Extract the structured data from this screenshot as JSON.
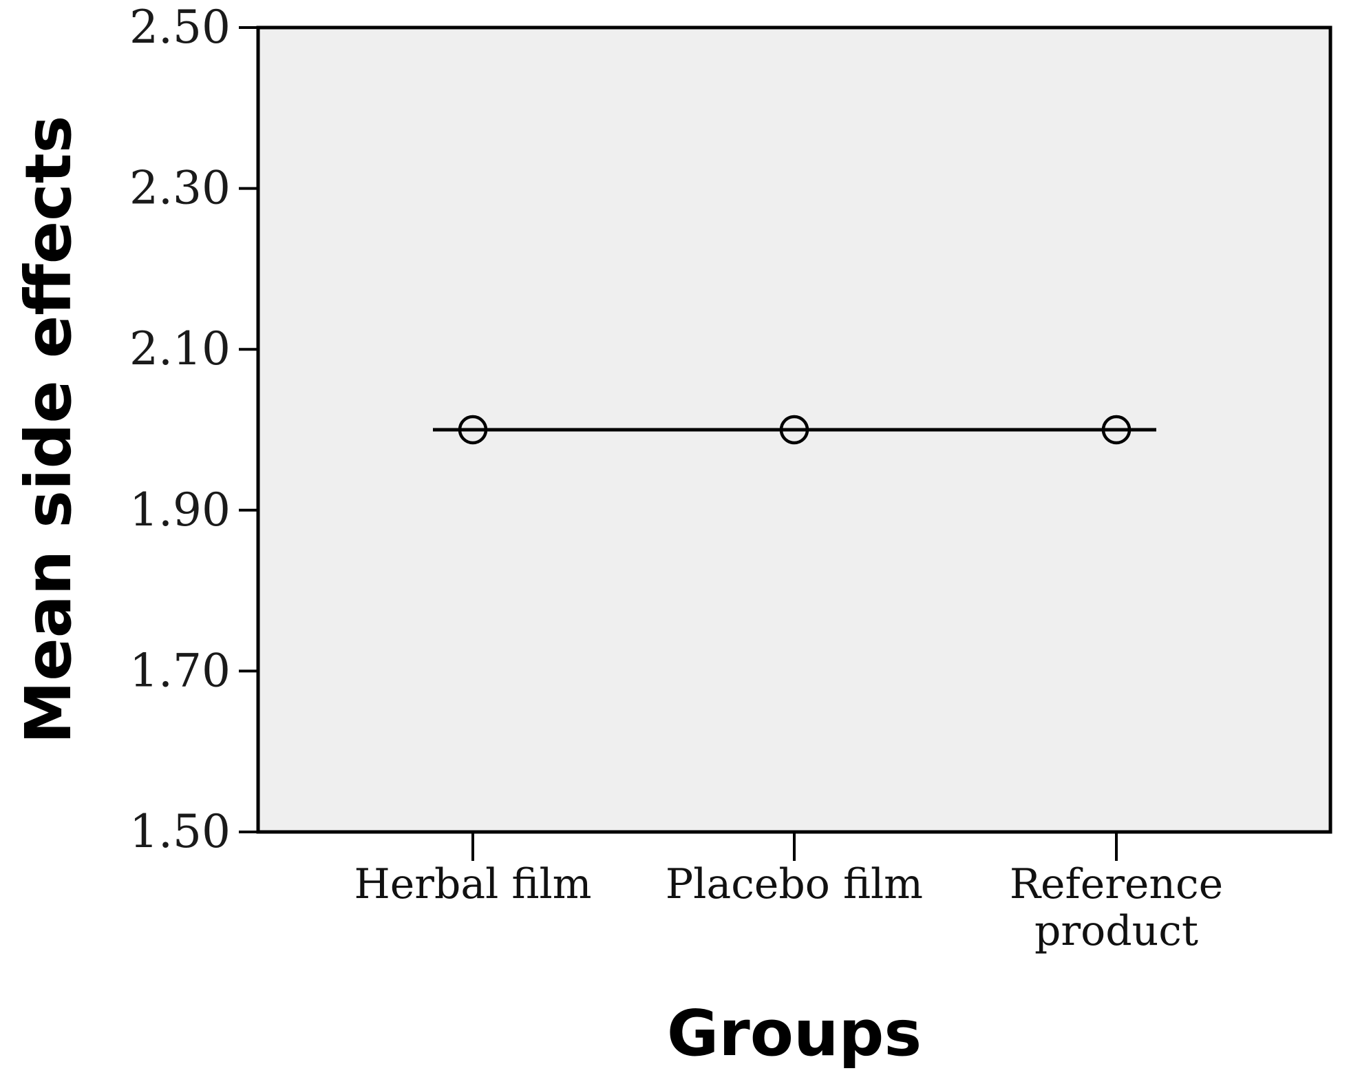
{
  "chart_data": {
    "type": "line",
    "categories": [
      "Herbal film",
      "Placebo film",
      "Reference product"
    ],
    "category_label_lines": [
      [
        "Herbal film"
      ],
      [
        "Placebo film"
      ],
      [
        "Reference",
        "product"
      ]
    ],
    "series": [
      {
        "values": [
          2.0,
          2.0,
          2.0
        ],
        "marker": "open-circle"
      }
    ],
    "xlabel": "Groups",
    "ylabel": "Mean side effects",
    "ylim": [
      1.5,
      2.5
    ],
    "yticks": [
      "1.50",
      "1.70",
      "1.90",
      "2.10",
      "2.30",
      "2.50"
    ],
    "grid": false,
    "legend": "none"
  },
  "colors": {
    "plot_background": "#efefef",
    "axis": "#000000",
    "series_line": "#000000"
  }
}
